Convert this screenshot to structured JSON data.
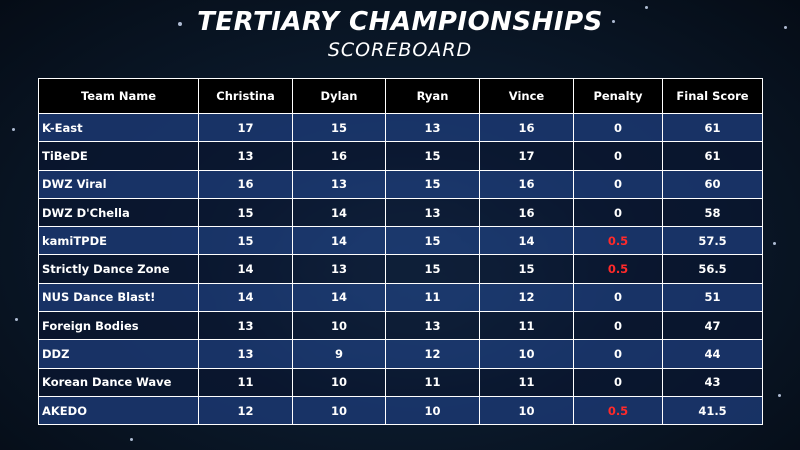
{
  "header": {
    "title": "TERTIARY CHAMPIONSHIPS",
    "subtitle": "SCOREBOARD"
  },
  "columns": [
    "Team Name",
    "Christina",
    "Dylan",
    "Ryan",
    "Vince",
    "Penalty",
    "Final Score"
  ],
  "rows": [
    {
      "team": "K-East",
      "christina": "17",
      "dylan": "15",
      "ryan": "13",
      "vince": "16",
      "penalty": "0",
      "final": "61"
    },
    {
      "team": "TiBeDE",
      "christina": "13",
      "dylan": "16",
      "ryan": "15",
      "vince": "17",
      "penalty": "0",
      "final": "61"
    },
    {
      "team": "DWZ Viral",
      "christina": "16",
      "dylan": "13",
      "ryan": "15",
      "vince": "16",
      "penalty": "0",
      "final": "60"
    },
    {
      "team": "DWZ D'Chella",
      "christina": "15",
      "dylan": "14",
      "ryan": "13",
      "vince": "16",
      "penalty": "0",
      "final": "58"
    },
    {
      "team": "kamiTPDE",
      "christina": "15",
      "dylan": "14",
      "ryan": "15",
      "vince": "14",
      "penalty": "0.5",
      "final": "57.5"
    },
    {
      "team": "Strictly Dance Zone",
      "christina": "14",
      "dylan": "13",
      "ryan": "15",
      "vince": "15",
      "penalty": "0.5",
      "final": "56.5"
    },
    {
      "team": "NUS Dance Blast!",
      "christina": "14",
      "dylan": "14",
      "ryan": "11",
      "vince": "12",
      "penalty": "0",
      "final": "51"
    },
    {
      "team": "Foreign Bodies",
      "christina": "13",
      "dylan": "10",
      "ryan": "13",
      "vince": "11",
      "penalty": "0",
      "final": "47"
    },
    {
      "team": "DDZ",
      "christina": "13",
      "dylan": "9",
      "ryan": "12",
      "vince": "10",
      "penalty": "0",
      "final": "44"
    },
    {
      "team": "Korean Dance Wave",
      "christina": "11",
      "dylan": "10",
      "ryan": "11",
      "vince": "11",
      "penalty": "0",
      "final": "43"
    },
    {
      "team": "AKEDO",
      "christina": "12",
      "dylan": "10",
      "ryan": "10",
      "vince": "10",
      "penalty": "0.5",
      "final": "41.5"
    }
  ],
  "colors": {
    "penalty_highlight": "#ff2a2a",
    "row_odd": "#1a376e",
    "row_even": "#0a1630",
    "header_bg": "#000000"
  }
}
